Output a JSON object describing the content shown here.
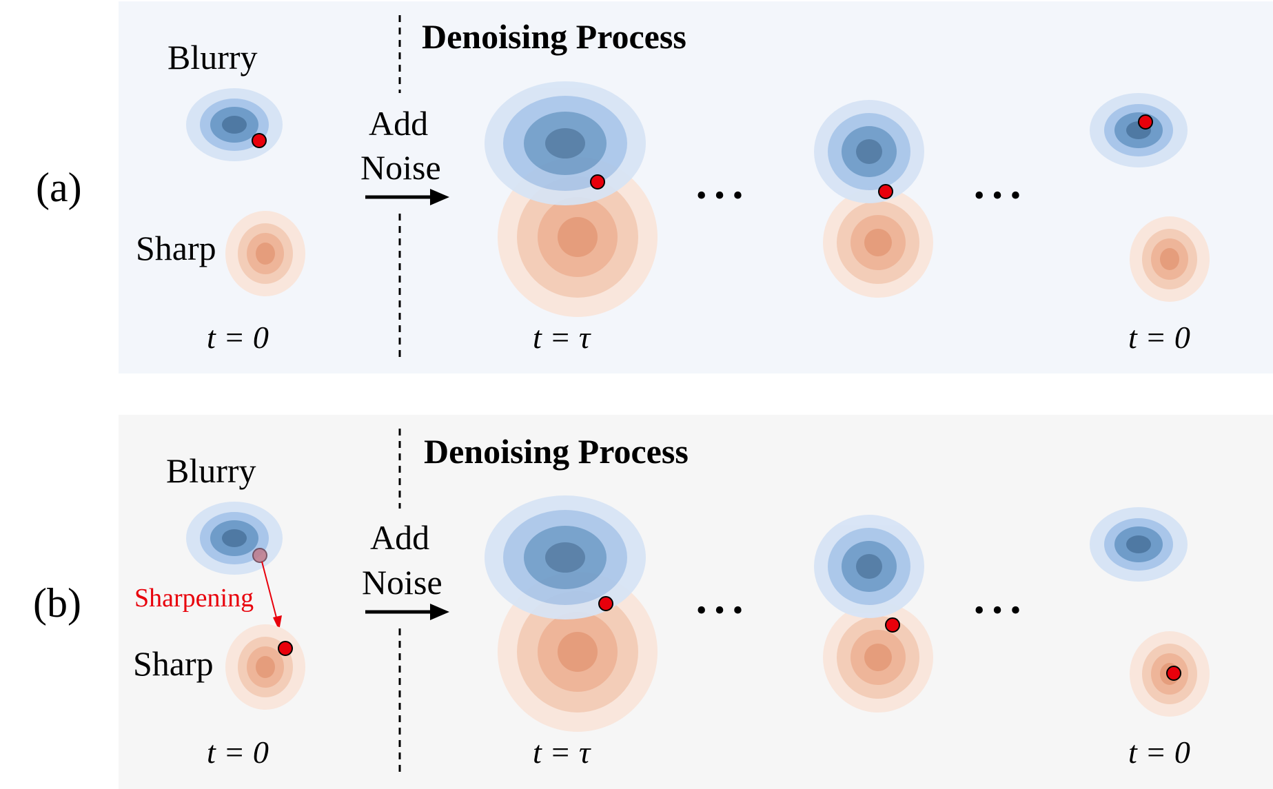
{
  "panels": [
    {
      "id": "a",
      "tag": "(a)",
      "title": "Denoising Process",
      "blurry_label": "Blurry",
      "sharp_label": "Sharp",
      "add_noise_line1": "Add",
      "add_noise_line2": "Noise",
      "ellipsis": "• • •",
      "t_start": "t = 0",
      "t_tau": "t =  τ",
      "t_end": "t = 0",
      "sharpening_label": "",
      "background": "#f3f6fb"
    },
    {
      "id": "b",
      "tag": "(b)",
      "title": "Denoising Process",
      "blurry_label": "Blurry",
      "sharp_label": "Sharp",
      "add_noise_line1": "Add",
      "add_noise_line2": "Noise",
      "ellipsis": "• • •",
      "t_start": "t = 0",
      "t_tau": "t =  τ",
      "t_end": "t = 0",
      "sharpening_label": "Sharpening",
      "background": "#f6f6f6"
    }
  ],
  "colors": {
    "blue_outer": "#d7e4f5",
    "blue_mid": "#a9c6ea",
    "blue_inner": "#6f9cc9",
    "blue_core": "#4f79a3",
    "orange_outer": "#f9e6dc",
    "orange_mid": "#f3cdb8",
    "orange_inner": "#eeb599",
    "orange_core": "#e59d7c",
    "sample_dot": "#e8000b",
    "sharpening": "#e8000b"
  }
}
